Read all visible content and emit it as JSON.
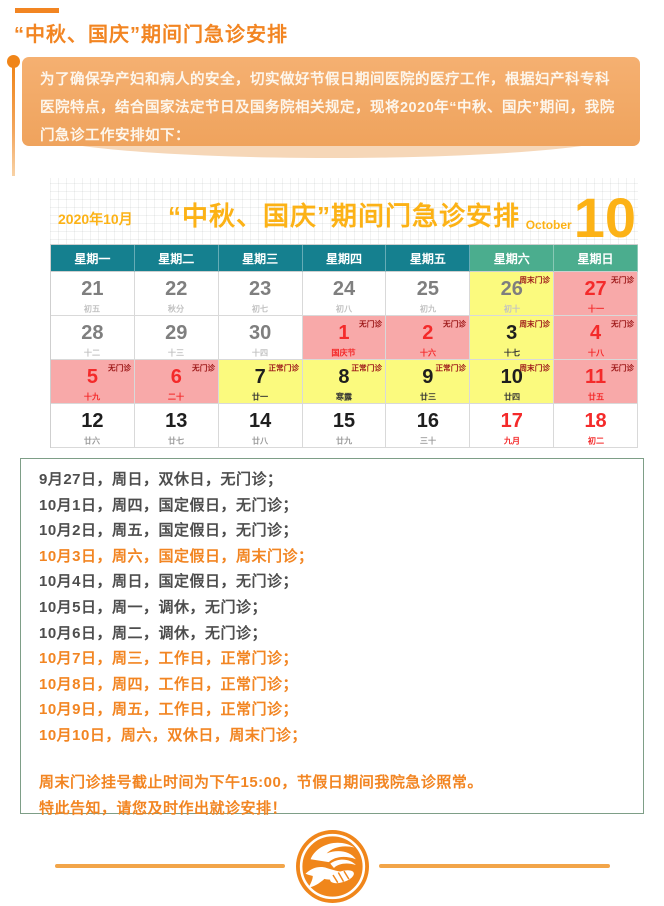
{
  "header": {
    "title": "“中秋、国庆”期间门急诊安排"
  },
  "intro": {
    "text": "为了确保孕产妇和病人的安全，切实做好节假日期间医院的医疗工作，根据妇产科专科医院特点，结合国家法定节日及国务院相关规定，现将2020年“中秋、国庆”期间，我院门急诊工作安排如下："
  },
  "calendar": {
    "month_label": "2020年10月",
    "title": "“中秋、国庆”期间门急诊安排",
    "month_en": "October",
    "month_num": "10",
    "weekdays": [
      "星期一",
      "星期二",
      "星期三",
      "星期四",
      "星期五",
      "星期六",
      "星期日"
    ],
    "weeks": [
      [
        {
          "date": "21",
          "lunar": "初五",
          "bg": "white",
          "num_color": "gray",
          "lunar_color": "light"
        },
        {
          "date": "22",
          "lunar": "秋分",
          "bg": "white",
          "num_color": "gray",
          "lunar_color": "light"
        },
        {
          "date": "23",
          "lunar": "初七",
          "bg": "white",
          "num_color": "gray",
          "lunar_color": "light"
        },
        {
          "date": "24",
          "lunar": "初八",
          "bg": "white",
          "num_color": "gray",
          "lunar_color": "light"
        },
        {
          "date": "25",
          "lunar": "初九",
          "bg": "white",
          "num_color": "gray",
          "lunar_color": "light"
        },
        {
          "date": "26",
          "lunar": "初十",
          "bg": "yellow",
          "num_color": "gray",
          "lunar_color": "light",
          "tag": "周末门诊"
        },
        {
          "date": "27",
          "lunar": "十一",
          "bg": "pink",
          "num_color": "red",
          "lunar_color": "red",
          "tag": "无门诊"
        }
      ],
      [
        {
          "date": "28",
          "lunar": "十二",
          "bg": "white",
          "num_color": "gray",
          "lunar_color": "light"
        },
        {
          "date": "29",
          "lunar": "十三",
          "bg": "white",
          "num_color": "gray",
          "lunar_color": "light"
        },
        {
          "date": "30",
          "lunar": "十四",
          "bg": "white",
          "num_color": "gray",
          "lunar_color": "light"
        },
        {
          "date": "1",
          "lunar": "国庆节",
          "bg": "pink",
          "num_color": "red",
          "lunar_color": "red",
          "tag": "无门诊"
        },
        {
          "date": "2",
          "lunar": "十六",
          "bg": "pink",
          "num_color": "red",
          "lunar_color": "red",
          "tag": "无门诊"
        },
        {
          "date": "3",
          "lunar": "十七",
          "bg": "yellow",
          "num_color": "black",
          "lunar_color": "black",
          "tag": "周末门诊"
        },
        {
          "date": "4",
          "lunar": "十八",
          "bg": "pink",
          "num_color": "red",
          "lunar_color": "red",
          "tag": "无门诊"
        }
      ],
      [
        {
          "date": "5",
          "lunar": "十九",
          "bg": "pink",
          "num_color": "red",
          "lunar_color": "red",
          "tag": "无门诊"
        },
        {
          "date": "6",
          "lunar": "二十",
          "bg": "pink",
          "num_color": "red",
          "lunar_color": "red",
          "tag": "无门诊"
        },
        {
          "date": "7",
          "lunar": "廿一",
          "bg": "yellow",
          "num_color": "black",
          "lunar_color": "black",
          "tag": "正常门诊"
        },
        {
          "date": "8",
          "lunar": "寒露",
          "bg": "yellow",
          "num_color": "black",
          "lunar_color": "black",
          "tag": "正常门诊"
        },
        {
          "date": "9",
          "lunar": "廿三",
          "bg": "yellow",
          "num_color": "black",
          "lunar_color": "black",
          "tag": "正常门诊"
        },
        {
          "date": "10",
          "lunar": "廿四",
          "bg": "yellow",
          "num_color": "black",
          "lunar_color": "black",
          "tag": "周末门诊"
        },
        {
          "date": "11",
          "lunar": "廿五",
          "bg": "pink",
          "num_color": "red",
          "lunar_color": "red",
          "tag": "无门诊"
        }
      ],
      [
        {
          "date": "12",
          "lunar": "廿六",
          "bg": "white",
          "num_color": "black",
          "lunar_color": "gray"
        },
        {
          "date": "13",
          "lunar": "廿七",
          "bg": "white",
          "num_color": "black",
          "lunar_color": "gray"
        },
        {
          "date": "14",
          "lunar": "廿八",
          "bg": "white",
          "num_color": "black",
          "lunar_color": "gray"
        },
        {
          "date": "15",
          "lunar": "廿九",
          "bg": "white",
          "num_color": "black",
          "lunar_color": "gray"
        },
        {
          "date": "16",
          "lunar": "三十",
          "bg": "white",
          "num_color": "black",
          "lunar_color": "gray"
        },
        {
          "date": "17",
          "lunar": "九月",
          "bg": "white",
          "num_color": "red",
          "lunar_color": "red"
        },
        {
          "date": "18",
          "lunar": "初二",
          "bg": "white",
          "num_color": "red",
          "lunar_color": "red"
        }
      ]
    ]
  },
  "schedule": {
    "lines": [
      {
        "text": "9月27日，周日，双休日，无门诊；",
        "highlight": false
      },
      {
        "text": "10月1日，周四，国定假日，无门诊；",
        "highlight": false
      },
      {
        "text": "10月2日，周五，国定假日，无门诊；",
        "highlight": false
      },
      {
        "text": "10月3日，周六，国定假日，周末门诊；",
        "highlight": true
      },
      {
        "text": "10月4日，周日，国定假日，无门诊；",
        "highlight": false
      },
      {
        "text": "10月5日，周一，调休，无门诊；",
        "highlight": false
      },
      {
        "text": "10月6日，周二，调休，无门诊；",
        "highlight": false
      },
      {
        "text": "10月7日，周三，工作日，正常门诊；",
        "highlight": true
      },
      {
        "text": "10月8日，周四，工作日，正常门诊；",
        "highlight": true
      },
      {
        "text": "10月9日，周五，工作日，正常门诊；",
        "highlight": true
      },
      {
        "text": "10月10日，周六，双休日，周末门诊；",
        "highlight": true
      }
    ]
  },
  "notes": {
    "lines": [
      "周末门诊挂号截止时间为下午15:00，节假日期间我院急诊照常。",
      "特此告知，请您及时作出就诊安排！"
    ]
  },
  "colors": {
    "accent_orange": "#F28522",
    "intro_box": "#F2A966",
    "calendar_gold": "#FCB216",
    "weekday_teal": "#15808F",
    "weekend_green": "#4BAD8E",
    "cell_yellow": "#FBFA7E",
    "cell_pink": "#F8A9A9",
    "day_red": "#F42A2A",
    "tag_dark_red": "#9E1A1A",
    "notice_border_green": "#7E9E87"
  }
}
